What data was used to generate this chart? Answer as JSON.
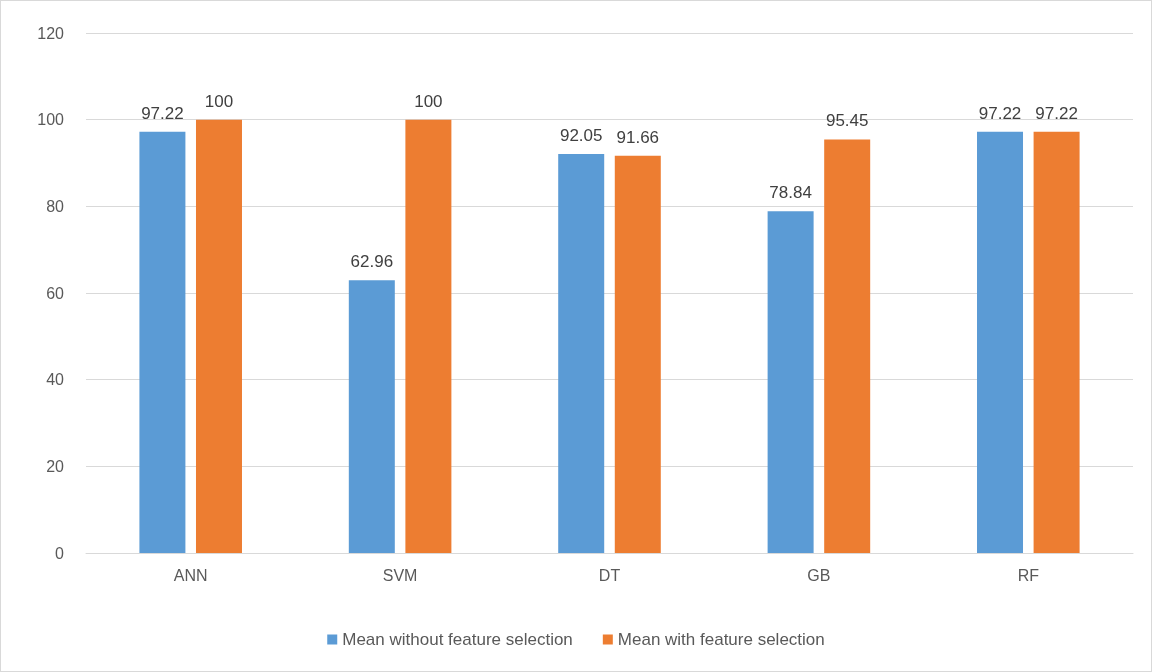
{
  "chart_data": {
    "type": "bar",
    "categories": [
      "ANN",
      "SVM",
      "DT",
      "GB",
      "RF"
    ],
    "series": [
      {
        "name": "Mean without feature selection",
        "color": "#5b9bd5",
        "values": [
          97.22,
          62.96,
          92.05,
          78.84,
          97.22
        ]
      },
      {
        "name": "Mean with feature selection",
        "color": "#ed7d31",
        "values": [
          100,
          100,
          91.66,
          95.45,
          97.22
        ]
      }
    ],
    "ylim": [
      0,
      120
    ],
    "yticks": [
      0,
      20,
      40,
      60,
      80,
      100,
      120
    ],
    "grid": "y",
    "legend": "bottom",
    "data_labels": true
  }
}
